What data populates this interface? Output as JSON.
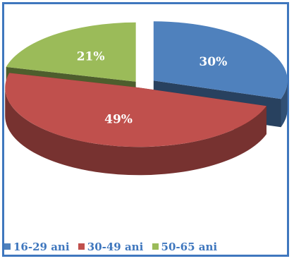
{
  "chart_data": {
    "type": "pie",
    "title": "",
    "slices": [
      {
        "label": "16-29 ani",
        "value": 30,
        "display": "30%",
        "color": "#4F81BD"
      },
      {
        "label": "30-49 ani",
        "value": 49,
        "display": "49%",
        "color": "#C0504D"
      },
      {
        "label": "50-65 ani",
        "value": 21,
        "display": "21%",
        "color": "#9BBB59"
      }
    ],
    "style": "3d-exploded",
    "legend_position": "bottom",
    "legend_text_color": "#3F77BE"
  }
}
